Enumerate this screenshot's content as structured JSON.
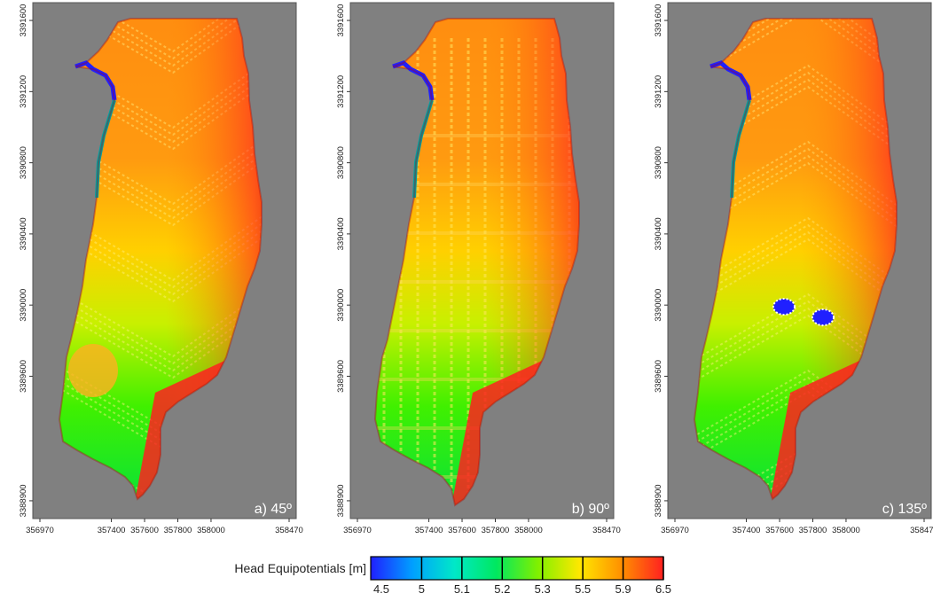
{
  "chart_data": {
    "type": "heatmap",
    "panels": [
      {
        "label": "a) 45º",
        "angle_deg": 45,
        "x_ticks": [
          "356970",
          "357400",
          "357600",
          "357800",
          "358000",
          "358470"
        ],
        "y_ticks": [
          "3391600",
          "3391200",
          "3390800",
          "3390400",
          "3390000",
          "3389600",
          "3388900"
        ],
        "xlim": [
          356970,
          358470
        ],
        "ylim": [
          3388800,
          3391700
        ]
      },
      {
        "label": "b) 90º",
        "angle_deg": 90,
        "x_ticks": [
          "356970",
          "357400",
          "357600",
          "357800",
          "358000",
          "358470"
        ],
        "y_ticks": [
          "3391600",
          "3391200",
          "3390800",
          "3390400",
          "3390000",
          "3389600",
          "3388900"
        ],
        "xlim": [
          356970,
          358470
        ],
        "ylim": [
          3388800,
          3391700
        ]
      },
      {
        "label": "c) 135º",
        "angle_deg": 135,
        "x_ticks": [
          "356970",
          "357400",
          "357600",
          "357800",
          "358000",
          "358470"
        ],
        "y_ticks": [
          "3391600",
          "3391200",
          "3390800",
          "3390400",
          "3390000",
          "3389600",
          "3388900"
        ],
        "xlim": [
          356970,
          358470
        ],
        "ylim": [
          3388800,
          3391700
        ]
      }
    ],
    "colorbar": {
      "title": "Head Equipotentials [m]",
      "levels": [
        "4.5",
        "5",
        "5.1",
        "5.2",
        "5.3",
        "5.5",
        "5.9",
        "6.5"
      ],
      "colors": [
        "#2020ff",
        "#00a0ff",
        "#00e8c8",
        "#00e860",
        "#80f000",
        "#ffe800",
        "#ff9000",
        "#ff2020"
      ]
    },
    "background_color": "#808080"
  }
}
